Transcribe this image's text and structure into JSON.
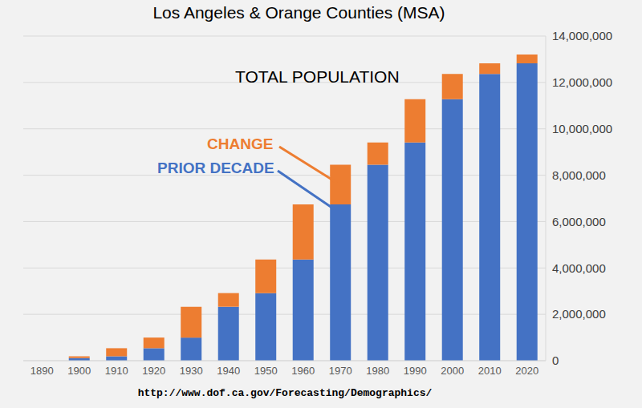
{
  "chart_data": {
    "type": "bar",
    "title": "Los Angeles & Orange Counties (MSA)",
    "annotations": [
      "TOTAL POPULATION"
    ],
    "source": "http://www.dof.ca.gov/Forecasting/Demographics/",
    "categories": [
      "1890",
      "1900",
      "1910",
      "1920",
      "1930",
      "1940",
      "1950",
      "1960",
      "1970",
      "1980",
      "1990",
      "2000",
      "2010",
      "2020"
    ],
    "series": [
      {
        "name": "PRIOR DECADE",
        "color": "#4472c4",
        "values": [
          null,
          115000,
          190000,
          539000,
          998000,
          2327000,
          2916000,
          4368000,
          6743000,
          8452000,
          9410000,
          11274000,
          12366000,
          12829000
        ]
      },
      {
        "name": "CHANGE",
        "color": "#ed7d31",
        "values": [
          null,
          75000,
          349000,
          459000,
          1329000,
          589000,
          1452000,
          2375000,
          1710000,
          958000,
          1864000,
          1092000,
          463000,
          372000
        ]
      }
    ],
    "stacked": true,
    "ylim": [
      0,
      14000000
    ],
    "yticks": [
      0,
      {
        "value": 2000000,
        "label": "2,000,000"
      },
      {
        "value": 4000000,
        "label": "4,000,000"
      },
      {
        "value": 6000000,
        "label": "6,000,000"
      },
      {
        "value": 8000000,
        "label": "8,000,000"
      },
      {
        "value": 10000000,
        "label": "10,000,000"
      },
      {
        "value": 12000000,
        "label": "12,000,000"
      },
      {
        "value": 14000000,
        "label": "14,000,000"
      }
    ],
    "grid": true
  }
}
